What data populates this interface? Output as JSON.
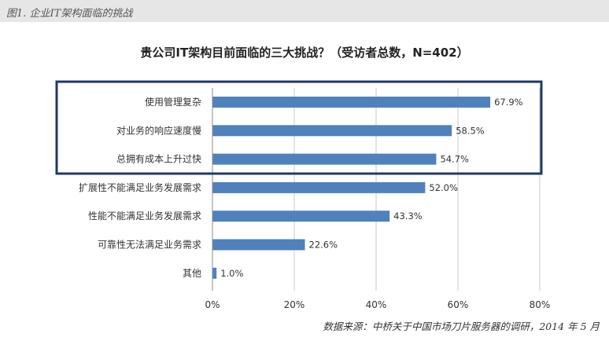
{
  "header": {
    "figure_label": "图1. 企业IT架构面临的挑战"
  },
  "chart_data": {
    "type": "bar",
    "orientation": "horizontal",
    "title": "贵公司IT架构目前面临的三大挑战？（受访者总数，N=402）",
    "categories": [
      "使用管理复杂",
      "对业务的响应速度慢",
      "总拥有成本上升过快",
      "扩展性不能满足业务发展需求",
      "性能不能满足业务发展需求",
      "可靠性无法满足业务需求",
      "其他"
    ],
    "values": [
      67.9,
      58.5,
      54.7,
      52.0,
      43.3,
      22.6,
      1.0
    ],
    "value_labels": [
      "67.9%",
      "58.5%",
      "54.7%",
      "52.0%",
      "43.3%",
      "22.6%",
      "1.0%"
    ],
    "xlim": [
      0,
      80
    ],
    "x_ticks": [
      0,
      20,
      40,
      60,
      80
    ],
    "x_tick_labels": [
      "0%",
      "20%",
      "40%",
      "60%",
      "80%"
    ],
    "grid": "vertical",
    "highlight": "top 3 categories boxed",
    "colors": {
      "bar": "#4f81bd",
      "highlight_box": "#1f3864",
      "grid": "#c8c8c8"
    }
  },
  "footer": {
    "source": "数据来源：中桥关于中国市场刀片服务器的调研，2014 年 5 月"
  }
}
